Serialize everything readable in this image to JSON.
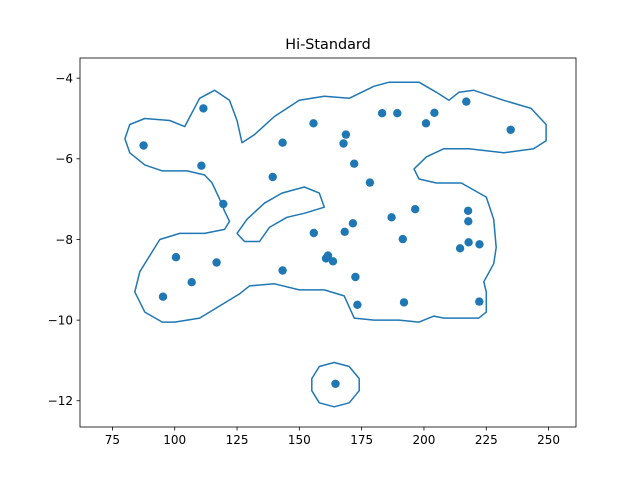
{
  "chart_data": {
    "type": "scatter",
    "title": "Hi-Standard",
    "xlabel": "",
    "ylabel": "",
    "xlim": [
      62,
      261
    ],
    "ylim": [
      -12.65,
      -3.5
    ],
    "xticks": [
      75,
      100,
      125,
      150,
      175,
      200,
      225,
      250
    ],
    "yticks": [
      -12,
      -10,
      -8,
      -6,
      -4
    ],
    "grid": false,
    "colors": {
      "points": "#1f77b4",
      "contour": "#1f77b4"
    },
    "points": [
      {
        "x": 87.5,
        "y": -5.67
      },
      {
        "x": 95.3,
        "y": -9.42
      },
      {
        "x": 100.5,
        "y": -8.44
      },
      {
        "x": 106.8,
        "y": -9.06
      },
      {
        "x": 110.7,
        "y": -6.17
      },
      {
        "x": 111.5,
        "y": -4.75
      },
      {
        "x": 116.8,
        "y": -8.57
      },
      {
        "x": 119.5,
        "y": -7.12
      },
      {
        "x": 139.3,
        "y": -6.45
      },
      {
        "x": 143.3,
        "y": -5.6
      },
      {
        "x": 143.3,
        "y": -8.77
      },
      {
        "x": 155.7,
        "y": -5.12
      },
      {
        "x": 155.8,
        "y": -7.84
      },
      {
        "x": 160.7,
        "y": -8.47
      },
      {
        "x": 161.5,
        "y": -8.4
      },
      {
        "x": 163.5,
        "y": -8.54
      },
      {
        "x": 164.5,
        "y": -11.58
      },
      {
        "x": 167.7,
        "y": -5.62
      },
      {
        "x": 168.2,
        "y": -7.81
      },
      {
        "x": 168.7,
        "y": -5.4
      },
      {
        "x": 171.5,
        "y": -7.6
      },
      {
        "x": 172.0,
        "y": -6.12
      },
      {
        "x": 172.5,
        "y": -8.93
      },
      {
        "x": 173.3,
        "y": -9.62
      },
      {
        "x": 178.3,
        "y": -6.59
      },
      {
        "x": 183.2,
        "y": -4.87
      },
      {
        "x": 187.0,
        "y": -7.45
      },
      {
        "x": 189.3,
        "y": -4.87
      },
      {
        "x": 191.5,
        "y": -7.99
      },
      {
        "x": 192.0,
        "y": -9.56
      },
      {
        "x": 196.5,
        "y": -7.25
      },
      {
        "x": 200.8,
        "y": -5.12
      },
      {
        "x": 204.2,
        "y": -4.86
      },
      {
        "x": 214.5,
        "y": -8.22
      },
      {
        "x": 217.0,
        "y": -4.58
      },
      {
        "x": 217.7,
        "y": -7.29
      },
      {
        "x": 217.8,
        "y": -7.55
      },
      {
        "x": 217.9,
        "y": -8.07
      },
      {
        "x": 222.3,
        "y": -8.12
      },
      {
        "x": 222.2,
        "y": -9.54
      },
      {
        "x": 234.8,
        "y": -5.28
      }
    ],
    "contours": [
      [
        [
          104,
          -5.2
        ],
        [
          110,
          -4.5
        ],
        [
          116,
          -4.3
        ],
        [
          122,
          -4.55
        ],
        [
          125,
          -5.05
        ],
        [
          127,
          -5.6
        ],
        [
          132,
          -5.4
        ],
        [
          140,
          -4.95
        ],
        [
          150,
          -4.55
        ],
        [
          160,
          -4.45
        ],
        [
          170,
          -4.5
        ],
        [
          180,
          -4.2
        ],
        [
          186,
          -4.1
        ],
        [
          198,
          -4.1
        ],
        [
          205,
          -4.35
        ],
        [
          210,
          -4.55
        ],
        [
          214,
          -4.35
        ],
        [
          220,
          -4.3
        ],
        [
          232,
          -4.55
        ],
        [
          243,
          -4.75
        ],
        [
          249,
          -5.15
        ],
        [
          249,
          -5.55
        ],
        [
          244,
          -5.75
        ],
        [
          232,
          -5.85
        ],
        [
          218,
          -5.75
        ],
        [
          208,
          -5.75
        ],
        [
          201,
          -5.95
        ],
        [
          196,
          -6.25
        ],
        [
          198,
          -6.5
        ],
        [
          205,
          -6.6
        ],
        [
          215,
          -6.6
        ],
        [
          225,
          -6.95
        ],
        [
          228,
          -7.5
        ],
        [
          229,
          -8.2
        ],
        [
          228,
          -8.6
        ],
        [
          224,
          -9.05
        ],
        [
          225,
          -9.3
        ],
        [
          225,
          -9.8
        ],
        [
          222,
          -9.95
        ],
        [
          215,
          -9.95
        ],
        [
          208,
          -9.95
        ],
        [
          204,
          -9.9
        ],
        [
          198,
          -10.05
        ],
        [
          190,
          -10.0
        ],
        [
          180,
          -10.0
        ],
        [
          172,
          -9.95
        ],
        [
          168,
          -9.4
        ],
        [
          160,
          -9.25
        ],
        [
          150,
          -9.25
        ],
        [
          140,
          -9.1
        ],
        [
          130,
          -9.15
        ],
        [
          126,
          -9.35
        ],
        [
          118,
          -9.65
        ],
        [
          110,
          -9.95
        ],
        [
          100,
          -10.05
        ],
        [
          95,
          -10.05
        ],
        [
          88,
          -9.8
        ],
        [
          84,
          -9.3
        ],
        [
          86,
          -8.8
        ],
        [
          90,
          -8.4
        ],
        [
          94,
          -8.0
        ],
        [
          102,
          -7.85
        ],
        [
          112,
          -7.85
        ],
        [
          120,
          -7.75
        ],
        [
          122,
          -7.55
        ],
        [
          120,
          -7.3
        ],
        [
          118,
          -7.0
        ],
        [
          115,
          -6.6
        ],
        [
          112,
          -6.4
        ],
        [
          105,
          -6.3
        ],
        [
          95,
          -6.3
        ],
        [
          88,
          -6.15
        ],
        [
          82,
          -5.85
        ],
        [
          80,
          -5.5
        ],
        [
          82,
          -5.15
        ],
        [
          88,
          -5.0
        ],
        [
          98,
          -5.05
        ],
        [
          104,
          -5.2
        ]
      ],
      [
        [
          152,
          -6.7
        ],
        [
          158,
          -6.85
        ],
        [
          160,
          -7.2
        ],
        [
          152,
          -7.35
        ],
        [
          145,
          -7.45
        ],
        [
          138,
          -7.7
        ],
        [
          134,
          -8.05
        ],
        [
          128,
          -8.05
        ],
        [
          125,
          -7.85
        ],
        [
          129,
          -7.5
        ],
        [
          136,
          -7.1
        ],
        [
          143,
          -6.85
        ],
        [
          152,
          -6.7
        ]
      ],
      [
        [
          164,
          -11.05
        ],
        [
          170,
          -11.15
        ],
        [
          174,
          -11.45
        ],
        [
          174,
          -11.75
        ],
        [
          170,
          -12.05
        ],
        [
          164,
          -12.15
        ],
        [
          158,
          -12.05
        ],
        [
          155,
          -11.75
        ],
        [
          155,
          -11.45
        ],
        [
          158,
          -11.15
        ],
        [
          164,
          -11.05
        ]
      ]
    ]
  }
}
